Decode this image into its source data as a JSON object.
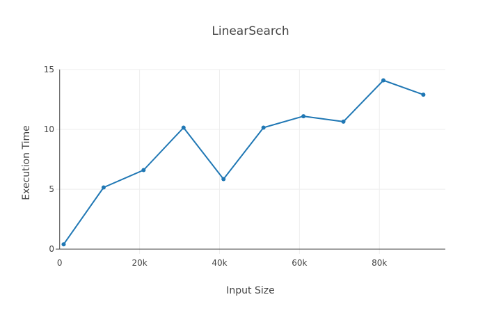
{
  "chart_data": {
    "type": "line",
    "title": "LinearSearch",
    "xlabel": "Input Size",
    "ylabel": "Execution Time",
    "xlim": [
      -1000,
      96500
    ],
    "ylim": [
      -0.4,
      15
    ],
    "x_ticks": [
      0,
      20000,
      40000,
      60000,
      80000
    ],
    "x_tick_labels": [
      "0",
      "20k",
      "40k",
      "60k",
      "80k"
    ],
    "y_ticks": [
      0,
      5,
      10,
      15
    ],
    "y_tick_labels": [
      "0",
      "5",
      "10",
      "15"
    ],
    "grid": true,
    "series": [
      {
        "color": "#1f77b4",
        "x": [
          1000,
          11000,
          21000,
          31000,
          41000,
          51000,
          61000,
          71000,
          81000,
          91000
        ],
        "y": [
          0.4,
          5.15,
          6.6,
          10.15,
          5.85,
          10.15,
          11.1,
          10.65,
          14.1,
          12.9
        ]
      }
    ]
  }
}
